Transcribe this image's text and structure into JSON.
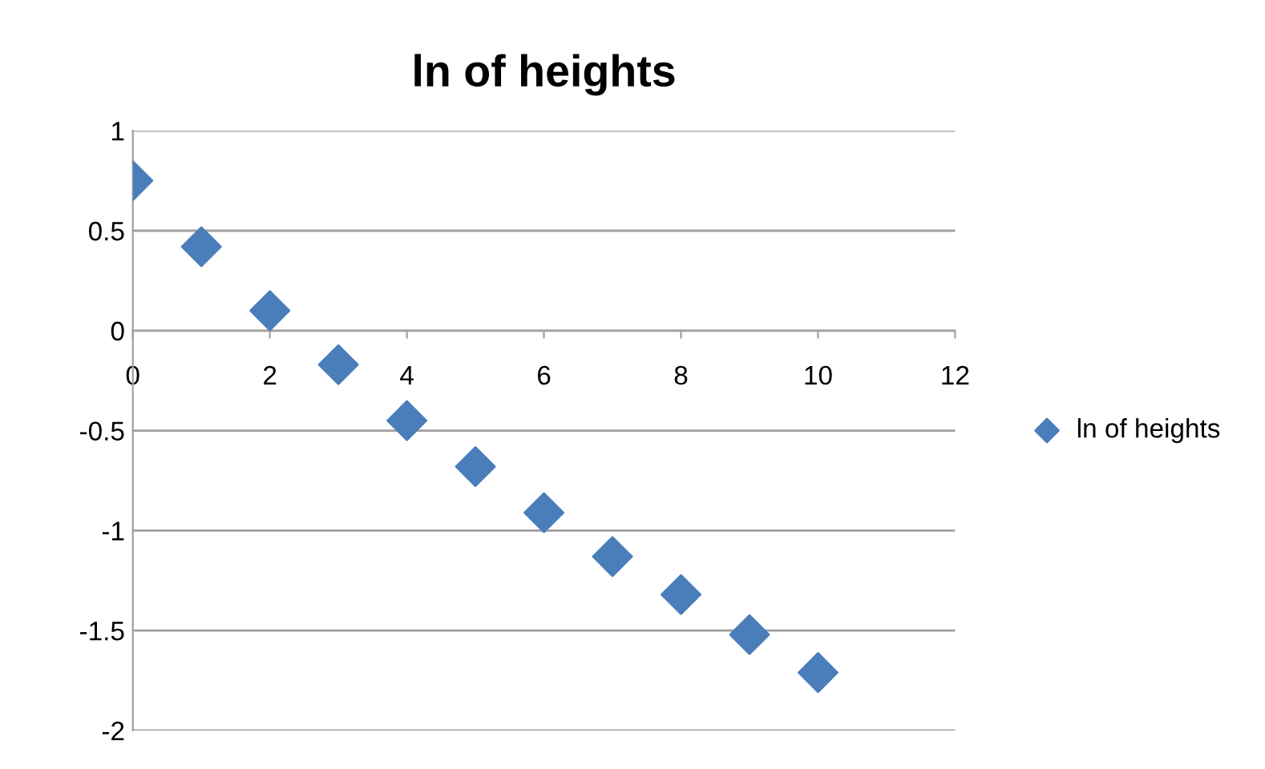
{
  "chart_data": {
    "type": "scatter",
    "title": "ln of heights",
    "x": [
      0,
      1,
      2,
      3,
      4,
      5,
      6,
      7,
      8,
      9,
      10
    ],
    "series": [
      {
        "name": "ln of heights",
        "color": "#4a7ebb",
        "values": [
          0.75,
          0.42,
          0.1,
          -0.17,
          -0.45,
          -0.68,
          -0.91,
          -1.13,
          -1.32,
          -1.52,
          -1.71
        ]
      }
    ],
    "xlim": [
      0,
      12
    ],
    "xticks": [
      0,
      2,
      4,
      6,
      8,
      10,
      12
    ],
    "ylim": [
      -2,
      1
    ],
    "yticks": [
      -2,
      -1.5,
      -1,
      -0.5,
      0,
      0.5,
      1
    ],
    "grid": "y",
    "legend": "right",
    "marker": "diamond"
  }
}
